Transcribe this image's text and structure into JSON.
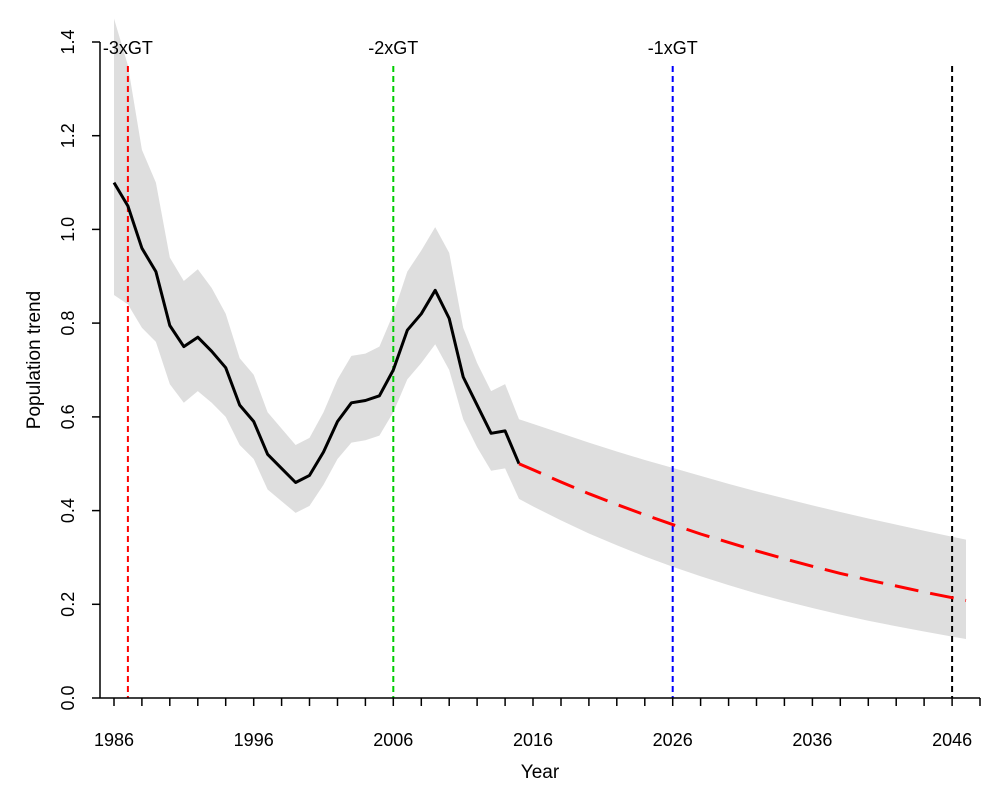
{
  "chart_data": {
    "type": "line",
    "xlabel": "Year",
    "ylabel": "Population trend",
    "x_range": [
      1985,
      2048
    ],
    "y_range": [
      0,
      1.4
    ],
    "grid": false,
    "x_tick_labels": [
      "1986",
      "1996",
      "2006",
      "2016",
      "2026",
      "2036",
      "2046"
    ],
    "y_tick_labels": [
      "0.0",
      "0.2",
      "0.4",
      "0.6",
      "0.8",
      "1.0",
      "1.2",
      "1.4"
    ],
    "band": {
      "color": "#dedede",
      "x": [
        1986,
        1987,
        1988,
        1989,
        1990,
        1991,
        1992,
        1993,
        1994,
        1995,
        1996,
        1997,
        1998,
        1999,
        2000,
        2001,
        2002,
        2003,
        2004,
        2005,
        2006,
        2007,
        2008,
        2009,
        2010,
        2011,
        2012,
        2013,
        2014,
        2015,
        2016,
        2018,
        2020,
        2022,
        2024,
        2026,
        2028,
        2030,
        2032,
        2034,
        2036,
        2038,
        2040,
        2042,
        2044,
        2046,
        2047
      ],
      "upper": [
        1.45,
        1.35,
        1.17,
        1.1,
        0.94,
        0.89,
        0.915,
        0.875,
        0.82,
        0.725,
        0.69,
        0.61,
        0.575,
        0.54,
        0.555,
        0.61,
        0.68,
        0.73,
        0.735,
        0.75,
        0.82,
        0.91,
        0.955,
        1.005,
        0.95,
        0.79,
        0.715,
        0.655,
        0.67,
        0.595,
        0.585,
        0.565,
        0.545,
        0.526,
        0.508,
        0.491,
        0.474,
        0.457,
        0.441,
        0.426,
        0.411,
        0.397,
        0.383,
        0.37,
        0.357,
        0.344,
        0.338
      ],
      "lower": [
        0.86,
        0.84,
        0.79,
        0.76,
        0.67,
        0.63,
        0.655,
        0.63,
        0.6,
        0.54,
        0.51,
        0.445,
        0.42,
        0.395,
        0.41,
        0.455,
        0.51,
        0.545,
        0.55,
        0.56,
        0.61,
        0.68,
        0.715,
        0.755,
        0.7,
        0.595,
        0.535,
        0.485,
        0.49,
        0.425,
        0.409,
        0.379,
        0.351,
        0.326,
        0.302,
        0.28,
        0.26,
        0.241,
        0.223,
        0.207,
        0.192,
        0.178,
        0.165,
        0.153,
        0.142,
        0.131,
        0.126
      ]
    },
    "series": [
      {
        "color": "#000000",
        "dashed": false,
        "x": [
          1986,
          1987,
          1988,
          1989,
          1990,
          1991,
          1992,
          1993,
          1994,
          1995,
          1996,
          1997,
          1998,
          1999,
          2000,
          2001,
          2002,
          2003,
          2004,
          2005,
          2006,
          2007,
          2008,
          2009,
          2010,
          2011,
          2012,
          2013,
          2014,
          2015
        ],
        "y": [
          1.1,
          1.05,
          0.96,
          0.91,
          0.795,
          0.75,
          0.77,
          0.74,
          0.705,
          0.625,
          0.59,
          0.52,
          0.49,
          0.46,
          0.475,
          0.525,
          0.59,
          0.63,
          0.635,
          0.645,
          0.7,
          0.785,
          0.82,
          0.87,
          0.81,
          0.685,
          0.625,
          0.565,
          0.57,
          0.5
        ]
      },
      {
        "color": "#ff0000",
        "dashed": true,
        "x": [
          2015,
          2016,
          2018,
          2020,
          2022,
          2024,
          2026,
          2028,
          2030,
          2032,
          2034,
          2036,
          2038,
          2040,
          2042,
          2044,
          2046,
          2047
        ],
        "y": [
          0.5,
          0.487,
          0.461,
          0.436,
          0.413,
          0.391,
          0.37,
          0.35,
          0.332,
          0.314,
          0.297,
          0.281,
          0.266,
          0.252,
          0.239,
          0.226,
          0.214,
          0.208
        ]
      }
    ],
    "reference_lines": [
      {
        "x": 1987,
        "label": "-3xGT",
        "color": "#ff0000"
      },
      {
        "x": 2006,
        "label": "-2xGT",
        "color": "#00cd00"
      },
      {
        "x": 2026,
        "label": "-1xGT",
        "color": "#0000ff"
      },
      {
        "x": 2046,
        "color": "#000000"
      }
    ]
  }
}
